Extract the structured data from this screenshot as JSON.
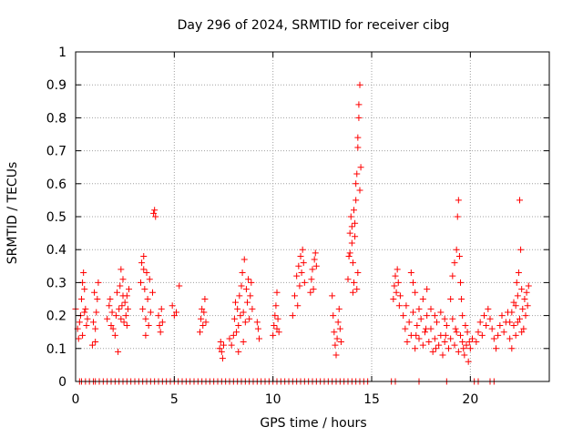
{
  "chart_data": {
    "type": "scatter",
    "title": "Day 296 of 2024, SRMTID for receiver cibg",
    "xlabel": "GPS time / hours",
    "ylabel": "SRMTID / TECUs",
    "xlim": [
      0,
      24
    ],
    "ylim": [
      0,
      1
    ],
    "xticks": [
      0,
      5,
      10,
      15,
      20
    ],
    "yticks": [
      0,
      0.1,
      0.2,
      0.3,
      0.4,
      0.5,
      0.6,
      0.7,
      0.8,
      0.9,
      1
    ],
    "xtick_labels": [
      "0",
      "5",
      "10",
      "15",
      "20"
    ],
    "ytick_labels": [
      "0",
      "0.1",
      "0.2",
      "0.3",
      "0.4",
      "0.5",
      "0.6",
      "0.7",
      "0.8",
      "0.9",
      "1"
    ],
    "grid": true,
    "marker": "+",
    "marker_color": "#ff0000",
    "series": [
      {
        "name": "cibg",
        "points": [
          [
            0.0,
            0.22
          ],
          [
            0.1,
            0.16
          ],
          [
            0.15,
            0.13
          ],
          [
            0.2,
            0.18
          ],
          [
            0.25,
            0.2
          ],
          [
            0.3,
            0.25
          ],
          [
            0.35,
            0.3
          ],
          [
            0.4,
            0.33
          ],
          [
            0.45,
            0.28
          ],
          [
            0.5,
            0.22
          ],
          [
            0.55,
            0.17
          ],
          [
            0.6,
            0.19
          ],
          [
            0.35,
            0.14
          ],
          [
            0.45,
            0.21
          ],
          [
            0.85,
            0.11
          ],
          [
            0.9,
            0.18
          ],
          [
            0.95,
            0.27
          ],
          [
            1.0,
            0.16
          ],
          [
            1.05,
            0.21
          ],
          [
            1.1,
            0.25
          ],
          [
            1.15,
            0.3
          ],
          [
            1.0,
            0.12
          ],
          [
            1.6,
            0.19
          ],
          [
            1.7,
            0.23
          ],
          [
            1.8,
            0.17
          ],
          [
            1.75,
            0.25
          ],
          [
            1.85,
            0.21
          ],
          [
            1.9,
            0.16
          ],
          [
            2.0,
            0.14
          ],
          [
            2.05,
            0.2
          ],
          [
            2.1,
            0.27
          ],
          [
            2.15,
            0.09
          ],
          [
            2.2,
            0.22
          ],
          [
            2.25,
            0.29
          ],
          [
            2.3,
            0.34
          ],
          [
            2.35,
            0.23
          ],
          [
            2.4,
            0.31
          ],
          [
            2.45,
            0.18
          ],
          [
            2.5,
            0.24
          ],
          [
            2.55,
            0.2
          ],
          [
            2.6,
            0.26
          ],
          [
            2.65,
            0.22
          ],
          [
            2.7,
            0.28
          ],
          [
            2.4,
            0.26
          ],
          [
            2.3,
            0.19
          ],
          [
            2.6,
            0.17
          ],
          [
            3.3,
            0.3
          ],
          [
            3.35,
            0.36
          ],
          [
            3.4,
            0.22
          ],
          [
            3.45,
            0.34
          ],
          [
            3.5,
            0.28
          ],
          [
            3.55,
            0.19
          ],
          [
            3.6,
            0.33
          ],
          [
            3.65,
            0.25
          ],
          [
            3.7,
            0.17
          ],
          [
            3.75,
            0.31
          ],
          [
            3.8,
            0.21
          ],
          [
            3.9,
            0.27
          ],
          [
            3.95,
            0.51
          ],
          [
            4.0,
            0.52
          ],
          [
            4.05,
            0.5
          ],
          [
            3.45,
            0.38
          ],
          [
            3.55,
            0.14
          ],
          [
            4.2,
            0.2
          ],
          [
            4.25,
            0.17
          ],
          [
            4.3,
            0.15
          ],
          [
            4.35,
            0.22
          ],
          [
            4.4,
            0.18
          ],
          [
            4.9,
            0.23
          ],
          [
            5.0,
            0.2
          ],
          [
            5.1,
            0.21
          ],
          [
            5.25,
            0.29
          ],
          [
            6.3,
            0.15
          ],
          [
            6.35,
            0.19
          ],
          [
            6.4,
            0.22
          ],
          [
            6.45,
            0.17
          ],
          [
            6.5,
            0.21
          ],
          [
            6.55,
            0.25
          ],
          [
            6.6,
            0.18
          ],
          [
            7.3,
            0.1
          ],
          [
            7.35,
            0.12
          ],
          [
            7.4,
            0.09
          ],
          [
            7.45,
            0.07
          ],
          [
            7.5,
            0.11
          ],
          [
            7.8,
            0.13
          ],
          [
            7.9,
            0.11
          ],
          [
            8.0,
            0.14
          ],
          [
            8.05,
            0.19
          ],
          [
            8.1,
            0.24
          ],
          [
            8.15,
            0.15
          ],
          [
            8.2,
            0.22
          ],
          [
            8.25,
            0.17
          ],
          [
            8.3,
            0.26
          ],
          [
            8.35,
            0.2
          ],
          [
            8.4,
            0.29
          ],
          [
            8.45,
            0.33
          ],
          [
            8.5,
            0.21
          ],
          [
            8.55,
            0.37
          ],
          [
            8.6,
            0.18
          ],
          [
            8.65,
            0.28
          ],
          [
            8.7,
            0.24
          ],
          [
            8.75,
            0.31
          ],
          [
            8.8,
            0.19
          ],
          [
            8.85,
            0.26
          ],
          [
            8.9,
            0.3
          ],
          [
            8.95,
            0.22
          ],
          [
            8.25,
            0.09
          ],
          [
            8.5,
            0.12
          ],
          [
            9.2,
            0.18
          ],
          [
            9.25,
            0.16
          ],
          [
            9.3,
            0.13
          ],
          [
            10.0,
            0.14
          ],
          [
            10.05,
            0.17
          ],
          [
            10.1,
            0.2
          ],
          [
            10.15,
            0.23
          ],
          [
            10.2,
            0.16
          ],
          [
            10.25,
            0.19
          ],
          [
            10.3,
            0.15
          ],
          [
            10.2,
            0.27
          ],
          [
            11.0,
            0.2
          ],
          [
            11.1,
            0.26
          ],
          [
            11.2,
            0.32
          ],
          [
            11.25,
            0.23
          ],
          [
            11.3,
            0.35
          ],
          [
            11.35,
            0.29
          ],
          [
            11.4,
            0.38
          ],
          [
            11.45,
            0.33
          ],
          [
            11.5,
            0.4
          ],
          [
            11.55,
            0.36
          ],
          [
            11.6,
            0.3
          ],
          [
            11.9,
            0.27
          ],
          [
            11.95,
            0.31
          ],
          [
            12.0,
            0.34
          ],
          [
            12.05,
            0.28
          ],
          [
            12.1,
            0.37
          ],
          [
            12.15,
            0.39
          ],
          [
            12.2,
            0.35
          ],
          [
            13.0,
            0.26
          ],
          [
            13.05,
            0.2
          ],
          [
            13.1,
            0.15
          ],
          [
            13.15,
            0.11
          ],
          [
            13.2,
            0.08
          ],
          [
            13.25,
            0.13
          ],
          [
            13.3,
            0.18
          ],
          [
            13.35,
            0.22
          ],
          [
            13.4,
            0.16
          ],
          [
            13.45,
            0.12
          ],
          [
            13.8,
            0.31
          ],
          [
            13.85,
            0.38
          ],
          [
            13.9,
            0.45
          ],
          [
            13.95,
            0.5
          ],
          [
            14.0,
            0.42
          ],
          [
            14.05,
            0.36
          ],
          [
            14.1,
            0.3
          ],
          [
            14.15,
            0.48
          ],
          [
            14.2,
            0.55
          ],
          [
            14.25,
            0.63
          ],
          [
            14.3,
            0.71
          ],
          [
            14.35,
            0.8
          ],
          [
            14.4,
            0.9
          ],
          [
            14.35,
            0.84
          ],
          [
            14.3,
            0.74
          ],
          [
            14.2,
            0.6
          ],
          [
            14.1,
            0.52
          ],
          [
            14.15,
            0.44
          ],
          [
            14.25,
            0.28
          ],
          [
            14.3,
            0.33
          ],
          [
            14.4,
            0.58
          ],
          [
            14.45,
            0.65
          ],
          [
            14.05,
            0.27
          ],
          [
            14.0,
            0.47
          ],
          [
            13.9,
            0.39
          ],
          [
            16.1,
            0.25
          ],
          [
            16.15,
            0.29
          ],
          [
            16.2,
            0.32
          ],
          [
            16.25,
            0.27
          ],
          [
            16.3,
            0.34
          ],
          [
            16.35,
            0.3
          ],
          [
            16.4,
            0.23
          ],
          [
            16.45,
            0.26
          ],
          [
            16.6,
            0.2
          ],
          [
            16.7,
            0.16
          ],
          [
            16.8,
            0.12
          ],
          [
            16.9,
            0.18
          ],
          [
            17.0,
            0.14
          ],
          [
            17.1,
            0.21
          ],
          [
            17.2,
            0.1
          ],
          [
            17.3,
            0.17
          ],
          [
            17.4,
            0.13
          ],
          [
            17.5,
            0.19
          ],
          [
            17.6,
            0.11
          ],
          [
            17.7,
            0.15
          ],
          [
            17.8,
            0.2
          ],
          [
            17.9,
            0.12
          ],
          [
            18.0,
            0.16
          ],
          [
            18.1,
            0.09
          ],
          [
            18.2,
            0.13
          ],
          [
            18.3,
            0.18
          ],
          [
            18.4,
            0.11
          ],
          [
            18.5,
            0.14
          ],
          [
            18.6,
            0.08
          ],
          [
            18.7,
            0.12
          ],
          [
            18.8,
            0.17
          ],
          [
            18.9,
            0.1
          ],
          [
            19.0,
            0.13
          ],
          [
            19.1,
            0.19
          ],
          [
            19.2,
            0.11
          ],
          [
            19.3,
            0.15
          ],
          [
            19.4,
            0.09
          ],
          [
            19.5,
            0.14
          ],
          [
            19.6,
            0.12
          ],
          [
            19.7,
            0.08
          ],
          [
            19.8,
            0.11
          ],
          [
            19.9,
            0.06
          ],
          [
            20.0,
            0.1
          ],
          [
            20.1,
            0.13
          ],
          [
            17.0,
            0.33
          ],
          [
            17.1,
            0.3
          ],
          [
            17.2,
            0.27
          ],
          [
            17.4,
            0.22
          ],
          [
            17.6,
            0.25
          ],
          [
            17.8,
            0.28
          ],
          [
            18.0,
            0.22
          ],
          [
            18.2,
            0.2
          ],
          [
            18.5,
            0.21
          ],
          [
            18.7,
            0.19
          ],
          [
            19.0,
            0.25
          ],
          [
            19.1,
            0.32
          ],
          [
            19.2,
            0.36
          ],
          [
            19.3,
            0.4
          ],
          [
            19.35,
            0.5
          ],
          [
            19.4,
            0.55
          ],
          [
            19.45,
            0.38
          ],
          [
            19.5,
            0.3
          ],
          [
            19.55,
            0.25
          ],
          [
            19.6,
            0.2
          ],
          [
            19.75,
            0.17
          ],
          [
            19.85,
            0.15
          ],
          [
            16.75,
            0.23
          ],
          [
            17.25,
            0.14
          ],
          [
            17.75,
            0.16
          ],
          [
            18.25,
            0.1
          ],
          [
            18.75,
            0.14
          ],
          [
            19.25,
            0.16
          ],
          [
            19.65,
            0.1
          ],
          [
            19.95,
            0.12
          ],
          [
            20.3,
            0.12
          ],
          [
            20.4,
            0.15
          ],
          [
            20.5,
            0.18
          ],
          [
            20.6,
            0.14
          ],
          [
            20.7,
            0.2
          ],
          [
            20.8,
            0.17
          ],
          [
            20.9,
            0.22
          ],
          [
            21.0,
            0.19
          ],
          [
            21.1,
            0.16
          ],
          [
            21.2,
            0.13
          ],
          [
            21.3,
            0.1
          ],
          [
            21.4,
            0.14
          ],
          [
            21.5,
            0.17
          ],
          [
            21.6,
            0.2
          ],
          [
            21.7,
            0.15
          ],
          [
            21.8,
            0.18
          ],
          [
            21.9,
            0.21
          ],
          [
            22.0,
            0.13
          ],
          [
            22.1,
            0.1
          ],
          [
            22.2,
            0.17
          ],
          [
            22.3,
            0.23
          ],
          [
            22.35,
            0.3
          ],
          [
            22.4,
            0.26
          ],
          [
            22.45,
            0.33
          ],
          [
            22.5,
            0.19
          ],
          [
            22.55,
            0.4
          ],
          [
            22.6,
            0.28
          ],
          [
            22.65,
            0.22
          ],
          [
            22.7,
            0.16
          ],
          [
            22.75,
            0.25
          ],
          [
            22.8,
            0.2
          ],
          [
            22.85,
            0.27
          ],
          [
            22.9,
            0.23
          ],
          [
            22.95,
            0.29
          ],
          [
            22.5,
            0.55
          ],
          [
            22.6,
            0.15
          ],
          [
            22.4,
            0.18
          ],
          [
            22.3,
            0.14
          ],
          [
            22.2,
            0.24
          ],
          [
            22.1,
            0.21
          ],
          [
            22.0,
            0.18
          ]
        ],
        "zero_points_x": [
          0.2,
          0.3,
          0.5,
          0.7,
          0.9,
          1.0,
          1.2,
          1.4,
          1.6,
          1.8,
          2.0,
          2.2,
          2.4,
          2.6,
          2.8,
          3.0,
          3.2,
          3.4,
          3.6,
          3.8,
          4.0,
          4.2,
          4.4,
          4.6,
          4.8,
          5.0,
          5.2,
          5.4,
          5.6,
          5.8,
          6.0,
          6.2,
          6.4,
          6.6,
          6.8,
          7.0,
          7.2,
          7.4,
          7.6,
          7.8,
          8.0,
          8.2,
          8.4,
          8.6,
          8.8,
          9.0,
          9.2,
          9.4,
          9.6,
          9.8,
          10.0,
          10.2,
          10.4,
          10.6,
          10.8,
          11.0,
          11.2,
          11.4,
          11.6,
          11.8,
          12.0,
          12.2,
          12.4,
          12.6,
          12.8,
          13.0,
          13.2,
          13.4,
          13.6,
          13.8,
          14.0,
          14.2,
          14.4,
          14.6,
          14.8,
          16.0,
          16.2,
          17.4,
          18.8,
          20.2,
          20.4,
          21.0,
          21.2
        ]
      }
    ]
  }
}
